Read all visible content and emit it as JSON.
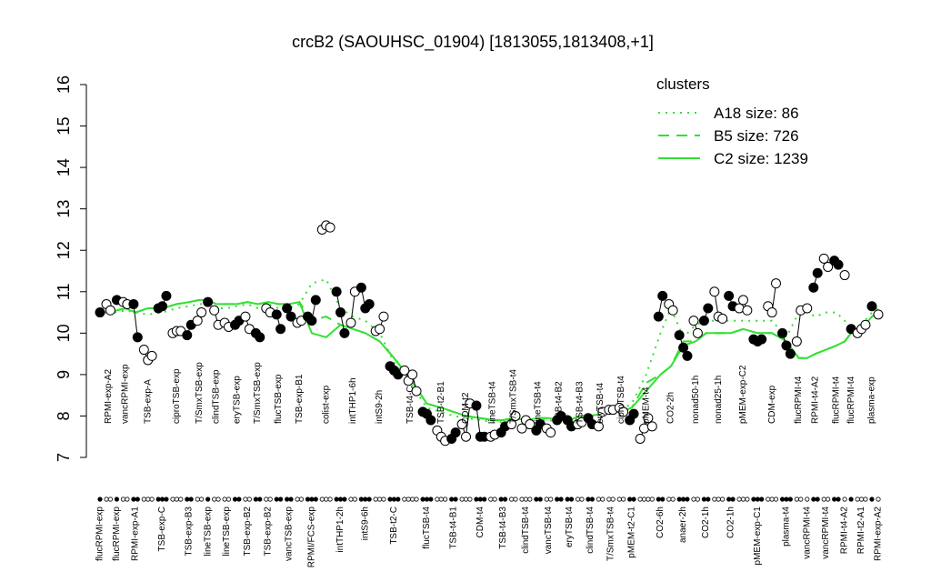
{
  "chart_data": {
    "type": "profile",
    "title": "crcB2 (SAOUHSC_01904) [1813055,1813408,+1]",
    "ylim": [
      7,
      16
    ],
    "yticks": [
      7,
      8,
      9,
      10,
      11,
      12,
      13,
      14,
      15,
      16
    ],
    "groups": [
      {
        "label": "flucRPMI-exp",
        "fill": "black",
        "values": [
          10.5
        ]
      },
      {
        "label": "RPMI-exp-A2",
        "fill": "white",
        "values": [
          10.7,
          10.55
        ]
      },
      {
        "label": "flucRPMI-exp",
        "fill": "black",
        "values": [
          10.8
        ]
      },
      {
        "label": "vancRPMI-exp",
        "fill": "white",
        "values": [
          10.75,
          10.7
        ]
      },
      {
        "label": "RPMI-exp-A1",
        "fill": "black",
        "values": [
          10.7,
          9.9
        ]
      },
      {
        "label": "TSB-exp-A",
        "fill": "white",
        "values": [
          9.6,
          9.35,
          9.45
        ]
      },
      {
        "label": "TSB-exp-C",
        "fill": "black",
        "values": [
          10.6,
          10.65,
          10.9
        ]
      },
      {
        "label": "ciproTSB-exp",
        "fill": "white",
        "values": [
          10.0,
          10.05,
          10.05
        ]
      },
      {
        "label": "TSB-exp-B3",
        "fill": "black",
        "values": [
          9.95,
          10.2
        ]
      },
      {
        "label": "T/SmxTSB-exp",
        "fill": "white",
        "values": [
          10.3,
          10.5
        ]
      },
      {
        "label": "lineTSB-exp",
        "fill": "black",
        "values": [
          10.75
        ]
      },
      {
        "label": "clindTSB-exp",
        "fill": "white",
        "values": [
          10.55,
          10.2
        ]
      },
      {
        "label": "lineTSB-exp",
        "fill": "white",
        "values": [
          10.25,
          10.15
        ]
      },
      {
        "label": "eryTSB-exp",
        "fill": "black",
        "values": [
          10.2,
          10.3
        ]
      },
      {
        "label": "TSB-exp-B2",
        "fill": "white",
        "values": [
          10.4,
          10.1
        ]
      },
      {
        "label": "T/SmxTSB-exp",
        "fill": "black",
        "values": [
          10.0,
          9.9
        ]
      },
      {
        "label": "TSB-exp-B2",
        "fill": "white",
        "values": [
          10.6,
          10.5
        ]
      },
      {
        "label": "flucTSB-exp",
        "fill": "black",
        "values": [
          10.45,
          10.1
        ]
      },
      {
        "label": "vancTSB-exp",
        "fill": "black",
        "values": [
          10.6,
          10.4
        ]
      },
      {
        "label": "TSB-exp-B1",
        "fill": "white",
        "values": [
          10.25,
          10.3
        ]
      },
      {
        "label": "RPMI/FCS-exp",
        "fill": "black",
        "values": [
          10.4,
          10.3,
          10.8
        ]
      },
      {
        "label": "colist-exp",
        "fill": "white",
        "values": [
          12.5,
          12.6,
          12.55
        ]
      },
      {
        "label": "intTHP1-2h",
        "fill": "black",
        "values": [
          11.0,
          10.5,
          10.0
        ]
      },
      {
        "label": "intTHP1-6h",
        "fill": "white",
        "values": [
          10.25,
          11.0
        ]
      },
      {
        "label": "intS9-6h",
        "fill": "black",
        "values": [
          11.1,
          10.6,
          10.7
        ]
      },
      {
        "label": "intS9-2h",
        "fill": "white",
        "values": [
          10.05,
          10.1,
          10.4
        ]
      },
      {
        "label": "TSB-t2-C",
        "fill": "black",
        "values": [
          9.2,
          9.1,
          9.0
        ]
      },
      {
        "label": "TSB-t4-C",
        "fill": "white",
        "values": [
          9.1,
          8.85,
          9.0,
          8.6
        ]
      },
      {
        "label": "flucTSB-t4",
        "fill": "black",
        "values": [
          8.1,
          8.05,
          7.9
        ]
      },
      {
        "label": "TSB-t2-B1",
        "fill": "white",
        "values": [
          7.65,
          7.5,
          7.4
        ]
      },
      {
        "label": "TSB-t4-B1",
        "fill": "black",
        "values": [
          7.45,
          7.6
        ]
      },
      {
        "label": "CDM-t2",
        "fill": "white",
        "values": [
          7.8,
          7.5,
          8.3
        ]
      },
      {
        "label": "CDM-t4",
        "fill": "black",
        "values": [
          8.25,
          7.5,
          7.5
        ]
      },
      {
        "label": "lineTSB-t4",
        "fill": "white",
        "values": [
          7.5,
          7.55
        ]
      },
      {
        "label": "TSB-t4-B3",
        "fill": "black",
        "values": [
          7.6,
          7.75
        ]
      },
      {
        "label": "T/SmxTSB-t4",
        "fill": "white",
        "values": [
          7.8,
          8.0
        ]
      },
      {
        "label": "clindTSB-t4",
        "fill": "white",
        "values": [
          7.7,
          7.9,
          7.8
        ]
      },
      {
        "label": "lineTSB-t4",
        "fill": "black",
        "values": [
          7.65,
          7.8
        ]
      },
      {
        "label": "vancTSB-t4",
        "fill": "white",
        "values": [
          7.7,
          7.6
        ]
      },
      {
        "label": "TSB-t4-B2",
        "fill": "black",
        "values": [
          7.9,
          8.0
        ]
      },
      {
        "label": "eryTSB-t4",
        "fill": "black",
        "values": [
          7.9,
          7.75
        ]
      },
      {
        "label": "TSB-t4-B3",
        "fill": "white",
        "values": [
          7.8,
          7.85
        ]
      },
      {
        "label": "clindTSB-t4",
        "fill": "black",
        "values": [
          7.95,
          7.8
        ]
      },
      {
        "label": "eryTSB-t4",
        "fill": "white",
        "values": [
          7.75,
          8.1
        ]
      },
      {
        "label": "T/SmxTSB-t4",
        "fill": "white",
        "values": [
          8.15,
          8.15
        ]
      },
      {
        "label": "ciproTSB-t4",
        "fill": "white",
        "values": [
          8.2,
          8.1
        ]
      },
      {
        "label": "pMEM-t2-C1",
        "fill": "black",
        "values": [
          7.9,
          8.05
        ]
      },
      {
        "label": "pMEM-t4",
        "fill": "white",
        "values": [
          7.45,
          7.7,
          7.95,
          7.75
        ]
      },
      {
        "label": "CO2-6h",
        "fill": "black",
        "values": [
          10.4,
          10.9
        ]
      },
      {
        "label": "CO2-2h",
        "fill": "white",
        "values": [
          10.7,
          10.55
        ]
      },
      {
        "label": "anaer-2h",
        "fill": "black",
        "values": [
          9.95,
          9.65,
          9.45
        ]
      },
      {
        "label": "nonad50-1h",
        "fill": "white",
        "values": [
          10.3,
          10.0
        ]
      },
      {
        "label": "CO2-1h",
        "fill": "black",
        "values": [
          10.3,
          10.6
        ]
      },
      {
        "label": "nonad25-1h",
        "fill": "white",
        "values": [
          11.0,
          10.4,
          10.35
        ]
      },
      {
        "label": "CO2-1h",
        "fill": "black",
        "values": [
          10.9,
          10.65
        ]
      },
      {
        "label": "pMEM-exp-C2",
        "fill": "white",
        "values": [
          10.6,
          10.8,
          10.55
        ]
      },
      {
        "label": "pMEM-exp-C1",
        "fill": "black",
        "values": [
          9.85,
          9.8,
          9.85
        ]
      },
      {
        "label": "CDM-exp",
        "fill": "white",
        "values": [
          10.65,
          10.5,
          11.2
        ]
      },
      {
        "label": "plasma-t4",
        "fill": "black",
        "values": [
          10.0,
          9.7,
          9.5
        ]
      },
      {
        "label": "flucRPMI-t4",
        "fill": "white",
        "values": [
          9.8,
          10.55
        ]
      },
      {
        "label": "vancRPMI-t4",
        "fill": "white",
        "values": [
          10.6
        ]
      },
      {
        "label": "RPMI-t4-A2",
        "fill": "black",
        "values": [
          11.1,
          11.45
        ]
      },
      {
        "label": "vancRPMI-t4",
        "fill": "white",
        "values": [
          11.8,
          11.6
        ]
      },
      {
        "label": "flucRPMI-t4",
        "fill": "black",
        "values": [
          11.75,
          11.65
        ]
      },
      {
        "label": "RPMI-t4-A2",
        "fill": "white",
        "values": [
          11.4
        ]
      },
      {
        "label": "flucRPMI-t4",
        "fill": "black",
        "values": [
          10.1
        ]
      },
      {
        "label": "RPMI-t2-A1",
        "fill": "white",
        "values": [
          10.0,
          10.1,
          10.2
        ]
      },
      {
        "label": "plasma-exp",
        "fill": "black",
        "values": [
          10.65
        ]
      },
      {
        "label": "RPMI-exp-A2",
        "fill": "white",
        "values": [
          10.45
        ]
      }
    ],
    "legend": {
      "title": "clusters",
      "color": "#33e033",
      "series": [
        {
          "name": "A18 size: 86",
          "style": "dotted",
          "values": [
            10.5,
            10.5,
            10.5,
            10.55,
            10.5,
            10.45,
            10.5,
            10.6,
            10.65,
            10.7,
            10.7,
            10.6,
            10.6,
            10.65,
            10.7,
            10.6,
            10.7,
            10.6,
            10.6,
            10.7,
            11.2,
            11.3,
            10.6,
            10.4,
            10.3,
            10.0,
            9.3,
            8.8,
            8.2,
            8.1,
            8.0,
            7.95,
            7.9,
            7.85,
            7.85,
            7.9,
            7.85,
            7.9,
            7.9,
            7.85,
            7.85,
            7.95,
            8.0,
            8.05,
            8.1,
            8.15,
            8.3,
            9.0,
            10.0,
            10.6,
            9.9,
            10.2,
            10.3,
            10.3,
            10.3,
            10.3,
            10.3,
            10.3,
            9.9,
            10.5,
            10.5,
            10.4,
            10.5,
            10.5,
            10.3,
            10.1,
            10.2,
            10.5,
            10.6
          ]
        },
        {
          "name": "B5 size: 726",
          "style": "dashed",
          "values": [
            10.5,
            10.5,
            10.55,
            10.6,
            10.5,
            10.6,
            10.6,
            10.7,
            10.75,
            10.8,
            10.8,
            10.7,
            10.7,
            10.7,
            10.75,
            10.7,
            10.75,
            10.7,
            10.7,
            10.75,
            10.3,
            10.4,
            10.2,
            10.1,
            10.0,
            9.8,
            9.4,
            8.9,
            8.3,
            8.2,
            8.1,
            8.0,
            7.95,
            7.9,
            7.9,
            7.95,
            7.9,
            7.95,
            7.95,
            7.9,
            7.9,
            8.0,
            8.0,
            8.05,
            8.1,
            8.1,
            8.2,
            8.8,
            9.0,
            9.2,
            9.8,
            9.8,
            10.0,
            10.0,
            10.0,
            10.1,
            10.0,
            10.0,
            9.8,
            9.4,
            9.4,
            9.5,
            9.6,
            9.7,
            9.8,
            10.0,
            10.1,
            10.4,
            10.5
          ]
        },
        {
          "name": "C2 size: 1239",
          "style": "solid",
          "values": [
            10.5,
            10.5,
            10.55,
            10.6,
            10.5,
            10.6,
            10.6,
            10.7,
            10.75,
            10.8,
            10.8,
            10.7,
            10.7,
            10.7,
            10.75,
            10.7,
            10.75,
            10.7,
            10.7,
            10.75,
            10.0,
            9.9,
            10.2,
            10.1,
            10.0,
            9.8,
            9.4,
            8.9,
            8.3,
            8.2,
            8.1,
            8.0,
            7.95,
            7.9,
            7.9,
            7.95,
            7.9,
            7.95,
            7.95,
            7.9,
            7.9,
            8.0,
            8.0,
            8.05,
            8.1,
            8.1,
            8.2,
            8.6,
            9.0,
            9.2,
            9.7,
            9.8,
            10.0,
            10.0,
            10.0,
            10.1,
            10.0,
            10.0,
            9.8,
            9.4,
            9.4,
            9.5,
            9.6,
            9.7,
            9.8,
            10.0,
            10.1,
            10.4,
            10.5
          ]
        }
      ]
    }
  }
}
